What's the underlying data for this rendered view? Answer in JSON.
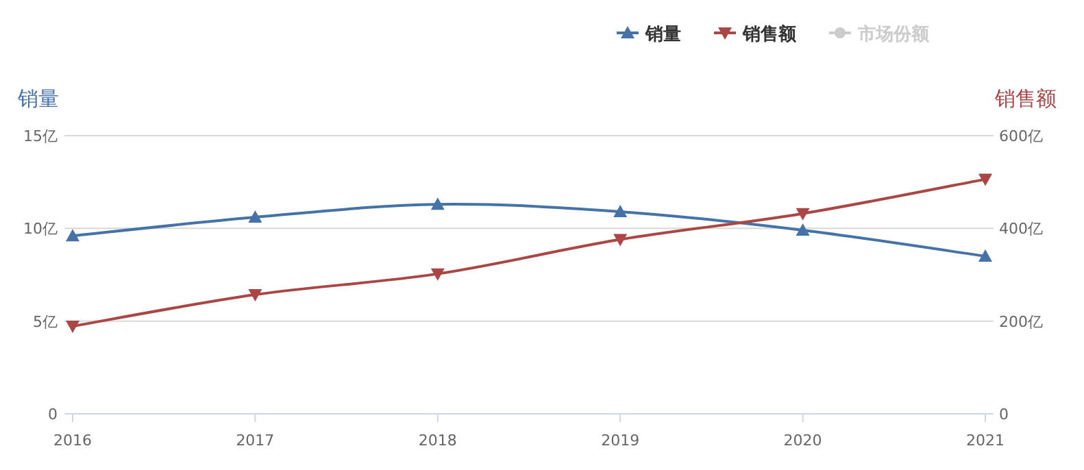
{
  "chart_data": {
    "type": "line",
    "categories": [
      "2016",
      "2017",
      "2018",
      "2019",
      "2020",
      "2021"
    ],
    "ylabel": "销量",
    "y2label": "销售额",
    "ylim": [
      0,
      15
    ],
    "yticks": [
      0,
      {
        "value": 5,
        "label": "5亿"
      },
      {
        "value": 10,
        "label": "10亿"
      },
      {
        "value": 15,
        "label": "15亿"
      }
    ],
    "y2lim": [
      0,
      600
    ],
    "y2ticks": [
      0,
      {
        "value": 200,
        "label": "200亿"
      },
      {
        "value": 400,
        "label": "400亿"
      },
      {
        "value": 600,
        "label": "600亿"
      }
    ],
    "grid": "y",
    "legend": "top right",
    "marker": "triangle",
    "series": [
      {
        "name": "销量",
        "color": "#4572a7",
        "values": [
          9.6,
          10.6,
          11.3,
          10.9,
          9.9,
          8.5
        ]
      },
      {
        "name": "销售额",
        "color": "#aa4643",
        "axis": "y2",
        "marker": "triangle-down",
        "values": [
          189,
          257,
          302,
          376,
          432,
          506
        ]
      },
      {
        "name": "市场份额",
        "color": "#cccccc",
        "values": [
          null,
          null,
          null,
          null,
          null,
          null
        ]
      }
    ]
  }
}
